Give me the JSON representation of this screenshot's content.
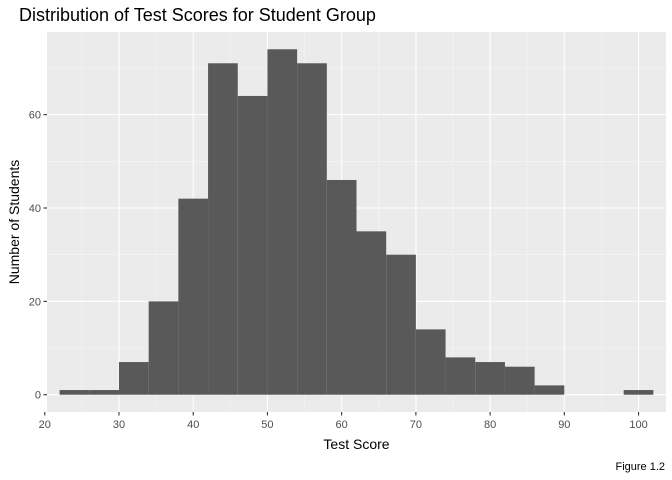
{
  "chart_data": {
    "type": "bar",
    "title": "Distribution of Test Scores for Student Group",
    "xlabel": "Test Score",
    "ylabel": "Number of Students",
    "caption": "Figure 1.2",
    "xlim": [
      20.3,
      103.7
    ],
    "ylim": [
      -3.7,
      77.7
    ],
    "x_ticks": [
      20,
      30,
      40,
      50,
      60,
      70,
      80,
      90,
      100
    ],
    "y_ticks": [
      0,
      20,
      40,
      60
    ],
    "bin_width": 4,
    "bins": [
      {
        "start": 22,
        "end": 26,
        "count": 1
      },
      {
        "start": 26,
        "end": 30,
        "count": 1
      },
      {
        "start": 30,
        "end": 34,
        "count": 7
      },
      {
        "start": 34,
        "end": 38,
        "count": 20
      },
      {
        "start": 38,
        "end": 42,
        "count": 42
      },
      {
        "start": 42,
        "end": 46,
        "count": 71
      },
      {
        "start": 46,
        "end": 50,
        "count": 64
      },
      {
        "start": 50,
        "end": 54,
        "count": 74
      },
      {
        "start": 54,
        "end": 58,
        "count": 71
      },
      {
        "start": 58,
        "end": 62,
        "count": 46
      },
      {
        "start": 62,
        "end": 66,
        "count": 35
      },
      {
        "start": 66,
        "end": 70,
        "count": 30
      },
      {
        "start": 70,
        "end": 74,
        "count": 14
      },
      {
        "start": 74,
        "end": 78,
        "count": 8
      },
      {
        "start": 78,
        "end": 82,
        "count": 7
      },
      {
        "start": 82,
        "end": 86,
        "count": 6
      },
      {
        "start": 86,
        "end": 90,
        "count": 2
      },
      {
        "start": 90,
        "end": 94,
        "count": 0
      },
      {
        "start": 94,
        "end": 98,
        "count": 0
      },
      {
        "start": 98,
        "end": 102,
        "count": 1
      }
    ],
    "grid": true,
    "legend": "none",
    "colors": {
      "bar_fill": "#595959",
      "panel_bg": "#ebebeb",
      "grid_major": "#ffffff",
      "grid_minor": "#f5f5f5",
      "tick_text": "#4d4d4d",
      "tick_mark": "#333333"
    }
  }
}
